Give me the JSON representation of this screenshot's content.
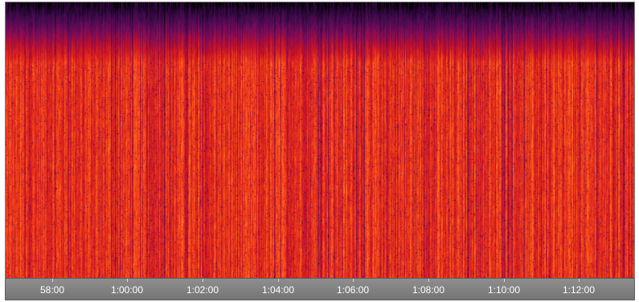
{
  "view": {
    "name": "Spectrogram",
    "colormap": [
      "#000000",
      "#3a0a4a",
      "#7a0c5a",
      "#c0102a",
      "#e8301a",
      "#ff6a1a",
      "#ffb040"
    ]
  },
  "time_axis": {
    "ticks": [
      "58:00",
      "1:00:00",
      "1:02:00",
      "1:04:00",
      "1:06:00",
      "1:08:00",
      "1:10:00",
      "1:12:00"
    ]
  }
}
